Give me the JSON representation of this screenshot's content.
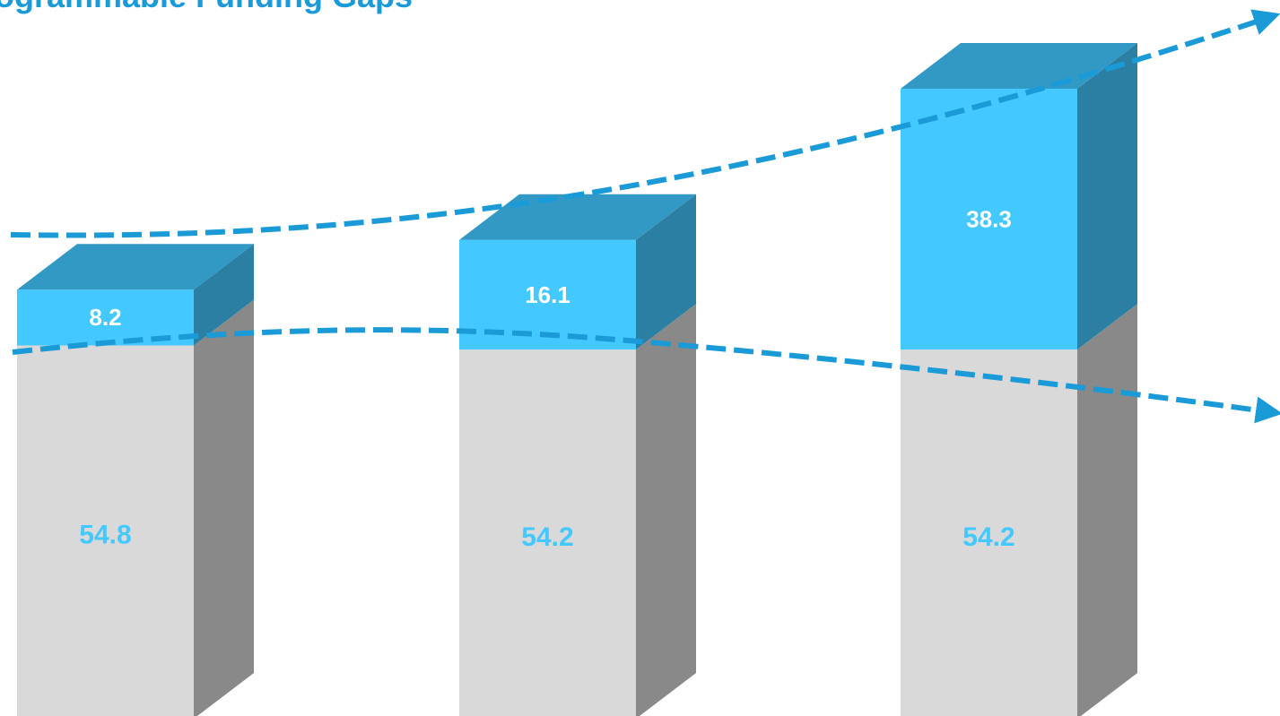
{
  "colors": {
    "title": "#1a9ad7",
    "gap_front": "#43c8ff",
    "gap_top": "#3199c4",
    "gap_side": "#2a7fa3",
    "base_front": "#d9d9d9",
    "base_side": "#898989",
    "trend": "#1a9ad7",
    "base_label": "#43c8ff",
    "gap_label": "#ffffff"
  },
  "chart_data": {
    "type": "bar",
    "stacked": true,
    "style": "3d-columns",
    "title": "ogrammable Funding Gaps",
    "categories": [
      "",
      "",
      ""
    ],
    "series": [
      {
        "values": [
          54.8,
          54.2,
          54.2
        ]
      },
      {
        "values": [
          8.2,
          16.1,
          38.3
        ]
      }
    ],
    "data_labels": {
      "base": [
        "54.8",
        "54.2",
        "54.2"
      ],
      "gap": [
        "8.2",
        "16.1",
        "38.3"
      ]
    },
    "trend_arrows": [
      "upward dashed arrow over the stack tops",
      "downward dashed arrow over the base tops"
    ],
    "grid": false,
    "legend": "none"
  }
}
